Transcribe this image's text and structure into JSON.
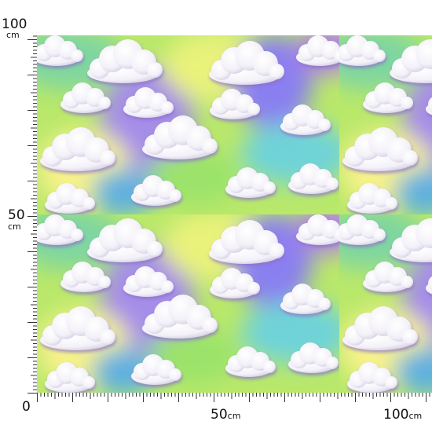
{
  "ruler": {
    "left": [
      {
        "value": "100",
        "unit": "cm"
      },
      {
        "value": "50",
        "unit": "cm"
      },
      {
        "value": "0"
      }
    ],
    "bottom": [
      {
        "value": "50",
        "unit": "cm"
      },
      {
        "value": "100",
        "unit": "cm"
      }
    ]
  }
}
